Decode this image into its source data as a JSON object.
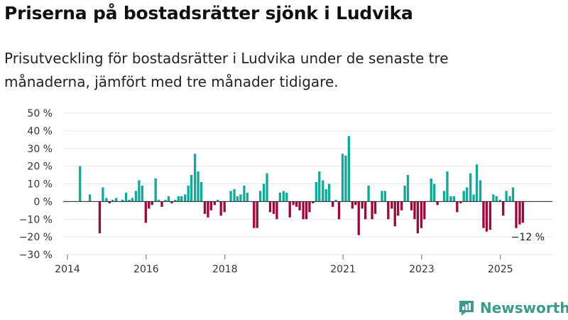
{
  "title": "Priserna på bostadsrätter sjönk i Ludvika",
  "subtitle": "Prisutveckling för bostadsrätter i Ludvika under de senaste tre månaderna, jämfört med tre månader tidigare.",
  "brand": {
    "name": "Newsworthy",
    "icon": "newsworthy-logo-icon",
    "color": "#3a9a8c"
  },
  "colors": {
    "positive": "#12a89a",
    "negative": "#990a3c",
    "grid": "#e6e6e6",
    "axis": "#666666"
  },
  "chart_data": {
    "type": "bar",
    "title": "Priserna på bostadsrätter sjönk i Ludvika",
    "xlabel": "",
    "ylabel": "",
    "ylim": [
      -30,
      50
    ],
    "yticks": [
      50,
      40,
      30,
      20,
      10,
      0,
      -10,
      -20,
      -30
    ],
    "ytick_labels": [
      "50 %",
      "40 %",
      "30 %",
      "20 %",
      "10 %",
      "0 %",
      "−10 %",
      "−20 %",
      "−30 %"
    ],
    "xlim": [
      2014.0,
      2026.5
    ],
    "xticks": [
      2014,
      2016,
      2018,
      2021,
      2023,
      2025
    ],
    "xtick_labels": [
      "2014",
      "2016",
      "2018",
      "2021",
      "2023",
      "2025"
    ],
    "last_value_label": "−12 %",
    "series": [
      {
        "name": "Prisutveckling",
        "points": [
          {
            "x": 2014.5,
            "y": 20
          },
          {
            "x": 2014.75,
            "y": 4
          },
          {
            "x": 2015.0,
            "y": -18
          },
          {
            "x": 2015.08,
            "y": 8
          },
          {
            "x": 2015.17,
            "y": 2
          },
          {
            "x": 2015.25,
            "y": -1
          },
          {
            "x": 2015.33,
            "y": 1
          },
          {
            "x": 2015.42,
            "y": 2
          },
          {
            "x": 2015.58,
            "y": 1
          },
          {
            "x": 2015.67,
            "y": 5
          },
          {
            "x": 2015.75,
            "y": 1
          },
          {
            "x": 2015.83,
            "y": 2
          },
          {
            "x": 2015.92,
            "y": 6
          },
          {
            "x": 2016.0,
            "y": 12
          },
          {
            "x": 2016.08,
            "y": 9
          },
          {
            "x": 2016.17,
            "y": -12
          },
          {
            "x": 2016.25,
            "y": -4
          },
          {
            "x": 2016.33,
            "y": -2
          },
          {
            "x": 2016.42,
            "y": 13
          },
          {
            "x": 2016.5,
            "y": 1
          },
          {
            "x": 2016.58,
            "y": -3
          },
          {
            "x": 2016.67,
            "y": 1
          },
          {
            "x": 2016.75,
            "y": 3
          },
          {
            "x": 2016.83,
            "y": -1
          },
          {
            "x": 2016.92,
            "y": 1
          },
          {
            "x": 2017.0,
            "y": 3
          },
          {
            "x": 2017.08,
            "y": 3
          },
          {
            "x": 2017.17,
            "y": 4
          },
          {
            "x": 2017.25,
            "y": 9
          },
          {
            "x": 2017.33,
            "y": 15
          },
          {
            "x": 2017.42,
            "y": 27
          },
          {
            "x": 2017.5,
            "y": 17
          },
          {
            "x": 2017.58,
            "y": 11
          },
          {
            "x": 2017.67,
            "y": -7
          },
          {
            "x": 2017.75,
            "y": -9
          },
          {
            "x": 2017.83,
            "y": -5
          },
          {
            "x": 2017.92,
            "y": -2
          },
          {
            "x": 2018.0,
            "y": 1
          },
          {
            "x": 2018.08,
            "y": -8
          },
          {
            "x": 2018.17,
            "y": -6
          },
          {
            "x": 2018.33,
            "y": 6
          },
          {
            "x": 2018.42,
            "y": 7
          },
          {
            "x": 2018.5,
            "y": 3
          },
          {
            "x": 2018.58,
            "y": 4
          },
          {
            "x": 2018.67,
            "y": 9
          },
          {
            "x": 2018.75,
            "y": 5
          },
          {
            "x": 2018.92,
            "y": -15
          },
          {
            "x": 2019.0,
            "y": -15
          },
          {
            "x": 2019.08,
            "y": 6
          },
          {
            "x": 2019.17,
            "y": 10
          },
          {
            "x": 2019.25,
            "y": 16
          },
          {
            "x": 2019.33,
            "y": -6
          },
          {
            "x": 2019.42,
            "y": -7
          },
          {
            "x": 2019.5,
            "y": -10
          },
          {
            "x": 2019.58,
            "y": 5
          },
          {
            "x": 2019.67,
            "y": 6
          },
          {
            "x": 2019.75,
            "y": 5
          },
          {
            "x": 2019.83,
            "y": -9
          },
          {
            "x": 2019.92,
            "y": -2
          },
          {
            "x": 2020.0,
            "y": -3
          },
          {
            "x": 2020.08,
            "y": -5
          },
          {
            "x": 2020.17,
            "y": -10
          },
          {
            "x": 2020.25,
            "y": -10
          },
          {
            "x": 2020.33,
            "y": -6
          },
          {
            "x": 2020.42,
            "y": -1
          },
          {
            "x": 2020.5,
            "y": 11
          },
          {
            "x": 2020.58,
            "y": 17
          },
          {
            "x": 2020.67,
            "y": 12
          },
          {
            "x": 2020.75,
            "y": 7
          },
          {
            "x": 2020.83,
            "y": 10
          },
          {
            "x": 2020.92,
            "y": -3
          },
          {
            "x": 2021.0,
            "y": 1
          },
          {
            "x": 2021.08,
            "y": -10
          },
          {
            "x": 2021.17,
            "y": 27
          },
          {
            "x": 2021.25,
            "y": 26
          },
          {
            "x": 2021.33,
            "y": 37
          },
          {
            "x": 2021.42,
            "y": -4
          },
          {
            "x": 2021.5,
            "y": -2
          },
          {
            "x": 2021.58,
            "y": -19
          },
          {
            "x": 2021.67,
            "y": -4
          },
          {
            "x": 2021.75,
            "y": -10
          },
          {
            "x": 2021.83,
            "y": 9
          },
          {
            "x": 2021.92,
            "y": -10
          },
          {
            "x": 2022.0,
            "y": -7
          },
          {
            "x": 2022.17,
            "y": 6
          },
          {
            "x": 2022.25,
            "y": 6
          },
          {
            "x": 2022.33,
            "y": -10
          },
          {
            "x": 2022.42,
            "y": -4
          },
          {
            "x": 2022.5,
            "y": -14
          },
          {
            "x": 2022.58,
            "y": -8
          },
          {
            "x": 2022.67,
            "y": -5
          },
          {
            "x": 2022.75,
            "y": 9
          },
          {
            "x": 2022.83,
            "y": 15
          },
          {
            "x": 2022.92,
            "y": -5
          },
          {
            "x": 2023.0,
            "y": -10
          },
          {
            "x": 2023.08,
            "y": -18
          },
          {
            "x": 2023.17,
            "y": -15
          },
          {
            "x": 2023.25,
            "y": -10
          },
          {
            "x": 2023.42,
            "y": 13
          },
          {
            "x": 2023.5,
            "y": 10
          },
          {
            "x": 2023.58,
            "y": -2
          },
          {
            "x": 2023.75,
            "y": 6
          },
          {
            "x": 2023.83,
            "y": 17
          },
          {
            "x": 2023.92,
            "y": 3
          },
          {
            "x": 2024.0,
            "y": 3
          },
          {
            "x": 2024.08,
            "y": -6
          },
          {
            "x": 2024.17,
            "y": -1
          },
          {
            "x": 2024.25,
            "y": 6
          },
          {
            "x": 2024.33,
            "y": 8
          },
          {
            "x": 2024.42,
            "y": 16
          },
          {
            "x": 2024.5,
            "y": 4
          },
          {
            "x": 2024.58,
            "y": 21
          },
          {
            "x": 2024.67,
            "y": 12
          },
          {
            "x": 2024.75,
            "y": -15
          },
          {
            "x": 2024.83,
            "y": -17
          },
          {
            "x": 2024.92,
            "y": -16
          },
          {
            "x": 2025.0,
            "y": 4
          },
          {
            "x": 2025.08,
            "y": 3
          },
          {
            "x": 2025.17,
            "y": 1
          },
          {
            "x": 2025.25,
            "y": -8
          },
          {
            "x": 2025.33,
            "y": 6
          },
          {
            "x": 2025.42,
            "y": 3
          },
          {
            "x": 2025.5,
            "y": 8
          },
          {
            "x": 2025.58,
            "y": -15
          },
          {
            "x": 2025.67,
            "y": -13
          },
          {
            "x": 2025.75,
            "y": -12
          }
        ]
      }
    ]
  }
}
